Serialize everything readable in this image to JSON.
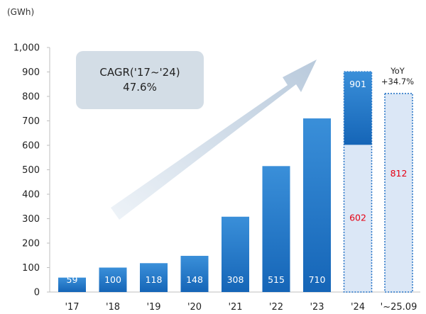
{
  "chart_data": {
    "type": "bar",
    "unit_label": "(GWh)",
    "categories": [
      "'17",
      "'18",
      "'19",
      "'20",
      "'21",
      "'22",
      "'23",
      "'24",
      "'~25.09"
    ],
    "values": [
      59,
      100,
      118,
      148,
      308,
      515,
      710,
      901,
      null
    ],
    "partial_values": [
      null,
      null,
      null,
      null,
      null,
      null,
      null,
      602,
      812
    ],
    "ylim": [
      0,
      1000
    ],
    "yticks": [
      0,
      100,
      200,
      300,
      400,
      500,
      600,
      700,
      800,
      900,
      1000
    ],
    "ytick_labels": [
      "0",
      "100",
      "200",
      "300",
      "400",
      "500",
      "600",
      "700",
      "800",
      "900",
      "1,000"
    ],
    "value_labels": [
      "59",
      "100",
      "118",
      "148",
      "308",
      "515",
      "710",
      "901",
      null
    ],
    "partial_labels": [
      null,
      null,
      null,
      null,
      null,
      null,
      null,
      "602",
      "812"
    ],
    "annotation": {
      "cagr_line1": "CAGR('17~'24)",
      "cagr_line2": "47.6%",
      "yoy_line1": "YoY",
      "yoy_line2": "+34.7%"
    },
    "colors": {
      "bar_top": "#3a8fd9",
      "bar_bottom": "#1565b7",
      "partial_fill": "#dbe7f6",
      "partial_border": "#1e6fc4",
      "partial_text": "#e60012",
      "arrow": "#c9d7e6",
      "cagr_box": "#d3dde6"
    },
    "grid": false
  }
}
